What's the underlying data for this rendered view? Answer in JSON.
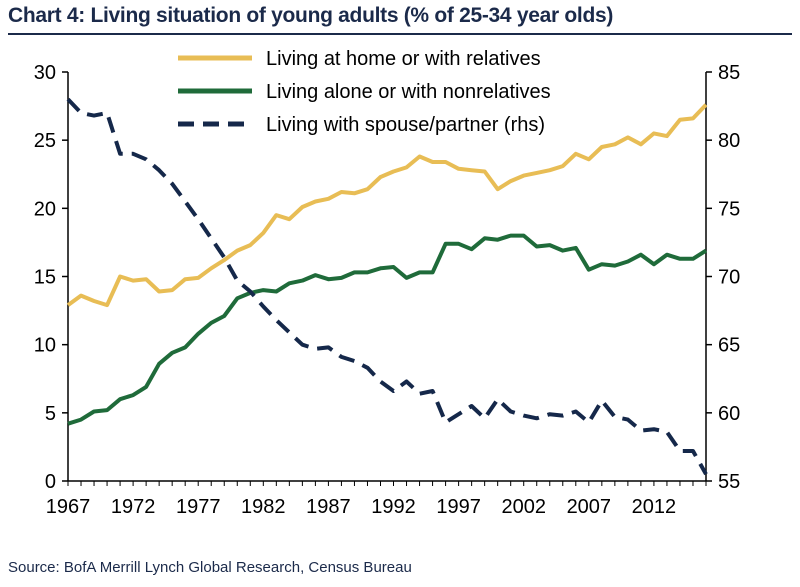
{
  "title": "Chart 4: Living situation of young adults (% of 25-34 year olds)",
  "source": "Source: BofA Merrill Lynch Global Research, Census Bureau",
  "chart_data": {
    "type": "line",
    "title": "Chart 4: Living situation of young adults (% of 25-34 year olds)",
    "xlabel": "",
    "ylabel": "",
    "xlim": [
      1967,
      2016
    ],
    "ylim_left": [
      0,
      30
    ],
    "ylim_right": [
      55,
      85
    ],
    "x_ticks": [
      "1967",
      "1972",
      "1977",
      "1982",
      "1987",
      "1992",
      "1997",
      "2002",
      "2007",
      "2012"
    ],
    "y_ticks_left": [
      "0",
      "5",
      "10",
      "15",
      "20",
      "25",
      "30"
    ],
    "y_ticks_right": [
      "55",
      "60",
      "65",
      "70",
      "75",
      "80",
      "85"
    ],
    "colors": {
      "home": "#e8bd55",
      "alone": "#1f6b3a",
      "spouse": "#15284a"
    },
    "series": [
      {
        "name": "Living at home or with relatives",
        "axis": "left",
        "style": "solid",
        "x": [
          1967,
          1968,
          1969,
          1970,
          1971,
          1972,
          1973,
          1974,
          1975,
          1976,
          1977,
          1978,
          1979,
          1980,
          1981,
          1982,
          1983,
          1984,
          1985,
          1986,
          1987,
          1988,
          1989,
          1990,
          1991,
          1992,
          1993,
          1994,
          1995,
          1996,
          1997,
          1998,
          1999,
          2000,
          2001,
          2002,
          2003,
          2004,
          2005,
          2006,
          2007,
          2008,
          2009,
          2010,
          2011,
          2012,
          2013,
          2014,
          2015,
          2016
        ],
        "values": [
          12.9,
          13.6,
          13.2,
          12.9,
          15.0,
          14.7,
          14.8,
          13.9,
          14.0,
          14.8,
          14.9,
          15.6,
          16.2,
          16.9,
          17.3,
          18.2,
          19.5,
          19.2,
          20.1,
          20.5,
          20.7,
          21.2,
          21.1,
          21.4,
          22.3,
          22.7,
          23.0,
          23.8,
          23.4,
          23.4,
          22.9,
          22.8,
          22.7,
          21.4,
          22.0,
          22.4,
          22.6,
          22.8,
          23.1,
          24.0,
          23.6,
          24.5,
          24.7,
          25.2,
          24.7,
          25.5,
          25.3,
          26.5,
          26.6,
          27.6
        ]
      },
      {
        "name": "Living alone or with nonrelatives",
        "axis": "left",
        "style": "solid",
        "x": [
          1967,
          1968,
          1969,
          1970,
          1971,
          1972,
          1973,
          1974,
          1975,
          1976,
          1977,
          1978,
          1979,
          1980,
          1981,
          1982,
          1983,
          1984,
          1985,
          1986,
          1987,
          1988,
          1989,
          1990,
          1991,
          1992,
          1993,
          1994,
          1995,
          1996,
          1997,
          1998,
          1999,
          2000,
          2001,
          2002,
          2003,
          2004,
          2005,
          2006,
          2007,
          2008,
          2009,
          2010,
          2011,
          2012,
          2013,
          2014,
          2015,
          2016
        ],
        "values": [
          4.2,
          4.5,
          5.1,
          5.2,
          6.0,
          6.3,
          6.9,
          8.6,
          9.4,
          9.8,
          10.8,
          11.6,
          12.1,
          13.4,
          13.8,
          14.0,
          13.9,
          14.5,
          14.7,
          15.1,
          14.8,
          14.9,
          15.3,
          15.3,
          15.6,
          15.7,
          14.9,
          15.3,
          15.3,
          17.4,
          17.4,
          17.0,
          17.8,
          17.7,
          18.0,
          18.0,
          17.2,
          17.3,
          16.9,
          17.1,
          15.5,
          15.9,
          15.8,
          16.1,
          16.6,
          15.9,
          16.6,
          16.3,
          16.3,
          16.9
        ]
      },
      {
        "name": "Living with spouse/partner (rhs)",
        "axis": "right",
        "style": "dashed",
        "x": [
          1967,
          1968,
          1969,
          1970,
          1971,
          1972,
          1973,
          1974,
          1975,
          1976,
          1977,
          1978,
          1979,
          1980,
          1981,
          1982,
          1983,
          1984,
          1985,
          1986,
          1987,
          1988,
          1989,
          1990,
          1991,
          1992,
          1993,
          1994,
          1995,
          1996,
          1997,
          1998,
          1999,
          2000,
          2001,
          2002,
          2003,
          2004,
          2005,
          2006,
          2007,
          2008,
          2009,
          2010,
          2011,
          2012,
          2013,
          2014,
          2015,
          2016
        ],
        "values": [
          83.0,
          82.0,
          81.8,
          82.0,
          79.0,
          79.0,
          78.6,
          77.8,
          76.8,
          75.5,
          74.2,
          72.8,
          71.4,
          69.7,
          68.9,
          67.8,
          66.8,
          65.9,
          65.0,
          64.7,
          64.8,
          64.1,
          63.8,
          63.3,
          62.3,
          61.6,
          62.3,
          61.4,
          61.6,
          59.3,
          59.9,
          60.5,
          59.6,
          61.0,
          60.1,
          59.8,
          59.6,
          59.9,
          59.8,
          60.1,
          59.3,
          60.9,
          59.7,
          59.5,
          58.7,
          58.8,
          58.6,
          57.2,
          57.2,
          55.5
        ]
      }
    ]
  }
}
